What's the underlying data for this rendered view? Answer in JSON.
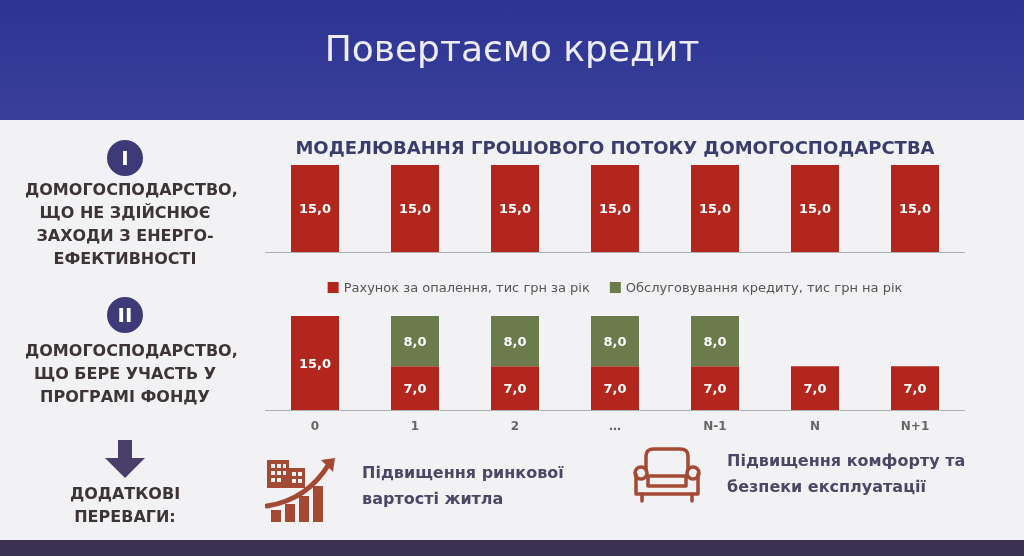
{
  "chart_data": [
    {
      "type": "bar",
      "title": "Повертаємо кредит",
      "subtitle": "МОДЕЛЮВАННЯ ГРОШОВОГО ПОТОКУ ДОМОГОСПОДАРСТВА",
      "ylabel": "ДОМОГОСПОДАРСТВО, ЩО НЕ ЗДІЙСНЮЄ ЗАХОДИ З ЕНЕРГО-ЕФЕКТИВНОСТІ",
      "annotations": [
        "I"
      ],
      "categories": [
        null,
        null,
        null,
        null,
        null,
        null,
        null
      ],
      "series": [
        {
          "color": "#b3261e",
          "values": [
            15,
            15,
            15,
            15,
            15,
            15,
            15
          ],
          "value_labels": [
            "15,0",
            "15,0",
            "15,0",
            "15,0",
            "15,0",
            "15,0",
            "15,0"
          ]
        }
      ]
    },
    {
      "type": "bar",
      "ylabel": "ДОМОГОСПОДАРСТВО, ЩО БЕРЕ УЧАСТЬ У ПРОГРАМІ ФОНДУ",
      "annotations": [
        "II"
      ],
      "categories": [
        "0",
        "1",
        "2",
        "…",
        "N-1",
        "N",
        "N+1"
      ],
      "stacked": true,
      "legend": "top",
      "tick_labels": "x",
      "series": [
        {
          "name": "Рахунок за опалення, тис грн за рік",
          "color": "#b3261e",
          "values": [
            15,
            7,
            7,
            7,
            7,
            7,
            7
          ],
          "value_labels": [
            "15,0",
            "7,0",
            "7,0",
            "7,0",
            "7,0",
            "7,0",
            "7,0"
          ]
        },
        {
          "name": "Обслуговування кредиту, тис грн на рік",
          "color": "#6b7b4b",
          "values": [
            null,
            8,
            8,
            8,
            8,
            null,
            null
          ],
          "value_labels": [
            null,
            "8,0",
            "8,0",
            "8,0",
            "8,0",
            null,
            null
          ]
        }
      ]
    },
    {
      "type": "other",
      "title": "ДОДАТКОВІ ПЕРЕВАГИ:",
      "annotations": [
        "Підвищення ринкової вартості житла",
        "Підвищення комфорту та безпеки експлуатації"
      ]
    }
  ]
}
